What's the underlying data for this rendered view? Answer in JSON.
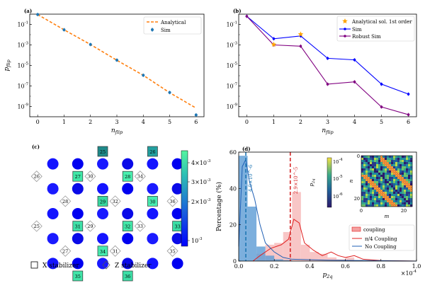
{
  "chart_data": [
    {
      "panel": "(a)",
      "type": "line",
      "xlabel": "n_flip",
      "ylabel": "p_flip",
      "yscale": "log",
      "xlim": [
        -0.3,
        6.3
      ],
      "ylim": [
        1e-10,
        1
      ],
      "x_ticks": [
        "0",
        "1",
        "2",
        "3",
        "4",
        "5",
        "6"
      ],
      "y_ticks": [
        "10^-1",
        "10^-3",
        "10^-5",
        "10^-7",
        "10^-9"
      ],
      "legend_position": "top-right",
      "series": [
        {
          "name": "Analytical",
          "style": "dashed",
          "color": "#ff7f0e",
          "x": [
            0,
            1,
            2,
            3,
            4,
            5,
            6
          ],
          "y": [
            0.92,
            0.03,
            0.0011,
            3.2e-05,
            1.1e-06,
            2.2e-08,
            7e-10
          ]
        },
        {
          "name": "Sim",
          "style": "markers-errorbar",
          "color": "#1f77b4",
          "x": [
            0,
            1,
            2,
            3,
            4,
            5,
            6
          ],
          "y": [
            0.92,
            0.03,
            0.0011,
            3.3e-05,
            1.1e-06,
            2.3e-08,
            1.5e-10
          ]
        }
      ]
    },
    {
      "panel": "(b)",
      "type": "line",
      "xlabel": "n_flip",
      "ylabel": "",
      "yscale": "log",
      "xlim": [
        -0.3,
        6.3
      ],
      "ylim": [
        1e-10,
        1
      ],
      "x_ticks": [
        "0",
        "1",
        "2",
        "3",
        "4",
        "5",
        "6"
      ],
      "y_ticks": [
        "10^-1",
        "10^-3",
        "10^-5",
        "10^-7",
        "10^-9"
      ],
      "legend_position": "top-right",
      "series": [
        {
          "name": "Analytical sol. 1st order",
          "style": "stars",
          "color": "#ffa500",
          "x": [
            1,
            2
          ],
          "y": [
            0.0011,
            0.011
          ]
        },
        {
          "name": "Sim",
          "style": "line-markers",
          "color": "#0000ff",
          "x": [
            0,
            1,
            2,
            3,
            4,
            5,
            6
          ],
          "y": [
            0.62,
            0.004,
            0.0075,
            5e-05,
            3.5e-05,
            1.5e-07,
            1.6e-08
          ]
        },
        {
          "name": "Robust Sim",
          "style": "line-markers",
          "color": "#800080",
          "x": [
            0,
            1,
            2,
            3,
            4,
            5,
            6
          ],
          "y": [
            0.62,
            0.001,
            0.00075,
            1.5e-07,
            2.5e-07,
            9e-10,
            1.6e-10
          ]
        }
      ]
    },
    {
      "panel": "(c)",
      "type": "other",
      "description_items": {
        "x_stabilizers": [
          "25",
          "26",
          "27",
          "28",
          "29",
          "30",
          "31",
          "32",
          "33",
          "34",
          "35",
          "36"
        ],
        "z_stabilizers": [
          "26",
          "30",
          "34",
          "28",
          "32",
          "36",
          "25",
          "29",
          "33",
          "27",
          "31",
          "35"
        ],
        "colorbar_ticks": [
          "4×10^-3",
          "3×10^-3",
          "2×10^-3",
          "10^-3"
        ]
      },
      "legend": [
        "X stabilizer",
        "Z stabilizer"
      ]
    },
    {
      "panel": "(d)",
      "type": "bar",
      "xlabel": "p_2q",
      "ylabel": "Percentage (%)",
      "x_multiplier": "×10^-4",
      "xlim": [
        0,
        1.0
      ],
      "ylim": [
        0,
        60
      ],
      "x_ticks": [
        "0.0",
        "0.2",
        "0.4",
        "0.6",
        "0.8",
        "1.0"
      ],
      "y_ticks": [
        "0",
        "20",
        "40",
        "60"
      ],
      "annotations": [
        "4.0×10^-6",
        "2.9×10^-5"
      ],
      "series": [
        {
          "name": "No Coupling",
          "color": "#1f77b4",
          "bin_centers": [
            0.025,
            0.075,
            0.125,
            0.175,
            0.225,
            0.275
          ],
          "values": [
            58,
            30,
            8,
            3,
            1,
            0.5
          ]
        },
        {
          "name": "π/4 Coupling",
          "color": "#d62728",
          "bin_centers": [
            0.125,
            0.175,
            0.225,
            0.275,
            0.325,
            0.375,
            0.425,
            0.475,
            0.525,
            0.575,
            0.625,
            0.675
          ],
          "values": [
            4,
            9,
            10,
            16,
            38,
            9,
            5,
            4,
            2,
            1,
            2,
            0.5
          ]
        }
      ],
      "legend_labels": [
        "coupling",
        "π/4 Coupling",
        "No Coupling"
      ],
      "vlines": [
        {
          "x": 0.04,
          "color": "#1f77b4"
        },
        {
          "x": 0.29,
          "color": "#d62728"
        }
      ],
      "inset": {
        "type": "heatmap",
        "xlabel": "m",
        "ylabel": "n",
        "x_ticks": [
          "0",
          "20"
        ],
        "y_ticks": [
          "0",
          "20"
        ],
        "colorbar_label": "p_2q",
        "colorbar_ticks": [
          "10^-4",
          "10^-5",
          "10^-6"
        ]
      }
    }
  ]
}
